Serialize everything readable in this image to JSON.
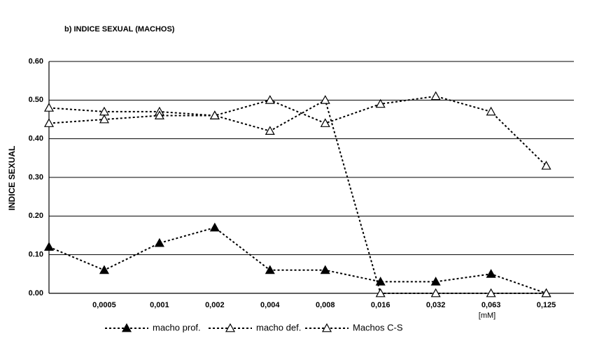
{
  "chart_data": {
    "type": "line",
    "title": "b) INDICE SEXUAL (MACHOS)",
    "y_label": "INDICE SEXUAL",
    "x_unit": "[mM]",
    "categories": [
      null,
      "0,0005",
      "0,001",
      "0,002",
      "0,004",
      "0,008",
      "0,016",
      "0,032",
      "0,063",
      "0,125"
    ],
    "series": [
      {
        "name": "macho prof.",
        "color": "#000000",
        "marker": "filled-triangle",
        "values": [
          0.12,
          0.06,
          0.13,
          0.17,
          0.06,
          0.06,
          0.03,
          0.03,
          0.05,
          0.0
        ]
      },
      {
        "name": "macho def.",
        "color": "#000000",
        "marker": "open-triangle",
        "values": [
          0.48,
          0.47,
          0.47,
          0.46,
          0.42,
          0.5,
          0.0,
          0.0,
          0.0,
          0.0
        ]
      },
      {
        "name": "Machos C-S",
        "color": "#000000",
        "marker": "open-triangle",
        "values": [
          0.44,
          0.45,
          0.46,
          0.46,
          0.5,
          0.44,
          0.49,
          0.51,
          0.47,
          0.33
        ]
      }
    ],
    "ylim": [
      0,
      0.6
    ],
    "yticks": [
      {
        "value": 0,
        "label": "0.00"
      },
      {
        "value": 0.1,
        "label": "0.10"
      },
      {
        "value": 0.2,
        "label": "0.20"
      },
      {
        "value": 0.3,
        "label": "0.30"
      },
      {
        "value": 0.4,
        "label": "0.40"
      },
      {
        "value": 0.5,
        "label": "0.50"
      },
      {
        "value": 0.6,
        "label": "0.60"
      }
    ],
    "grid": true,
    "legend": "bottom"
  }
}
